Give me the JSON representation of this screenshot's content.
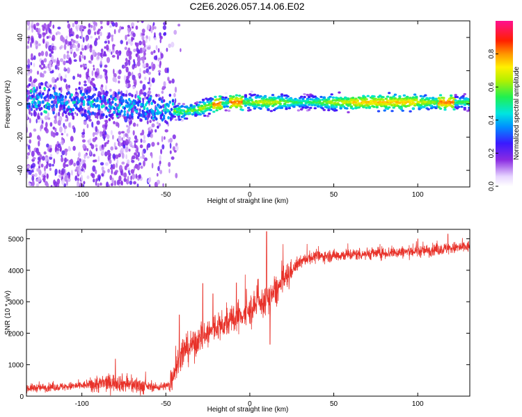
{
  "title": "C2E6.2026.057.14.06.E02",
  "chart_data": [
    {
      "type": "heatmap",
      "title": "C2E6.2026.057.14.06.E02",
      "xlabel": "Height of straight line (km)",
      "ylabel": "Frequency (Hz)",
      "xlim": [
        -133,
        131
      ],
      "ylim": [
        -50,
        50
      ],
      "xticks": [
        -100,
        -50,
        0,
        50,
        100
      ],
      "yticks": [
        -40,
        -20,
        0,
        20,
        40
      ],
      "colorbar": {
        "label": "Normalized spectral amplitude",
        "range": [
          0.0,
          1.0
        ],
        "ticks": [
          "0.0",
          "0.2",
          "0.4",
          "0.6",
          "0.8"
        ],
        "colormap": "rainbow (violet-blue-cyan-green-yellow-red-magenta)"
      },
      "ridge": {
        "description": "dominant Doppler frequency vs height",
        "points": [
          [
            -130,
            2
          ],
          [
            -100,
            1
          ],
          [
            -80,
            -1
          ],
          [
            -60,
            -2
          ],
          [
            -50,
            -4
          ],
          [
            -40,
            -5
          ],
          [
            -30,
            -3
          ],
          [
            -20,
            0
          ],
          [
            -10,
            1
          ],
          [
            0,
            1
          ],
          [
            10,
            1
          ],
          [
            20,
            1
          ],
          [
            50,
            1
          ],
          [
            80,
            1
          ],
          [
            100,
            1
          ],
          [
            131,
            1
          ]
        ]
      }
    },
    {
      "type": "line",
      "xlabel": "Height of straight line (km)",
      "ylabel": "SNR (10 * v/v)",
      "xlim": [
        -133,
        131
      ],
      "ylim": [
        0,
        5300
      ],
      "xticks": [
        -100,
        -50,
        0,
        50,
        100
      ],
      "yticks": [
        0,
        1000,
        2000,
        3000,
        4000,
        5000
      ],
      "series": [
        {
          "name": "SNR",
          "color": "#e8322a",
          "envelope": [
            [
              -133,
              250
            ],
            [
              -110,
              300
            ],
            [
              -90,
              380
            ],
            [
              -80,
              450
            ],
            [
              -70,
              350
            ],
            [
              -55,
              280
            ],
            [
              -48,
              350
            ],
            [
              -45,
              800
            ],
            [
              -40,
              1400
            ],
            [
              -35,
              1600
            ],
            [
              -30,
              1800
            ],
            [
              -25,
              2000
            ],
            [
              -20,
              2150
            ],
            [
              -15,
              2250
            ],
            [
              -10,
              2450
            ],
            [
              -5,
              2550
            ],
            [
              0,
              2700
            ],
            [
              5,
              2900
            ],
            [
              10,
              3050
            ],
            [
              15,
              3300
            ],
            [
              20,
              3650
            ],
            [
              25,
              4000
            ],
            [
              30,
              4250
            ],
            [
              35,
              4400
            ],
            [
              45,
              4450
            ],
            [
              60,
              4500
            ],
            [
              80,
              4550
            ],
            [
              100,
              4600
            ],
            [
              120,
              4700
            ],
            [
              131,
              4750
            ]
          ],
          "spikes": [
            [
              -80,
              1180
            ],
            [
              -42,
              2580
            ],
            [
              -28,
              3580
            ],
            [
              -22,
              3250
            ],
            [
              -8,
              3600
            ],
            [
              -2,
              3400
            ],
            [
              5,
              3720
            ],
            [
              10,
              5230
            ],
            [
              12,
              1650
            ],
            [
              100,
              5000
            ],
            [
              118,
              5150
            ]
          ]
        }
      ]
    }
  ]
}
